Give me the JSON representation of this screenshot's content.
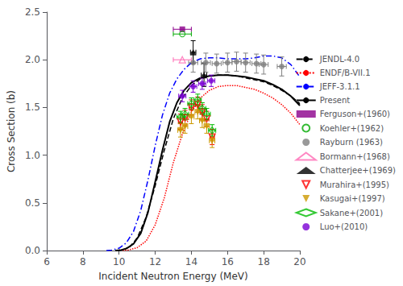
{
  "chart_data": {
    "type": "line",
    "xlabel": "Incident Neutron Energy (MeV)",
    "ylabel": "Cross Section (b)",
    "xlim": [
      6,
      20
    ],
    "ylim": [
      0.0,
      2.5
    ],
    "xticks": [
      6,
      8,
      10,
      12,
      14,
      16,
      18,
      20
    ],
    "yticks": [
      {
        "value": 0.0,
        "label": "0.0"
      },
      0.5,
      {
        "value": 1.0,
        "label": "1.0"
      },
      1.5,
      {
        "value": 2.0,
        "label": "2.0"
      },
      2.5
    ],
    "grid": false,
    "legend": "right",
    "series": [
      {
        "name": "JENDL-4.0",
        "type": "line",
        "color": "#000000",
        "line_style": "dashed",
        "x": [
          9.8,
          10.0,
          10.3,
          10.6,
          11.0,
          11.5,
          12.0,
          12.5,
          13.0,
          13.5,
          14.0,
          14.5,
          15.0,
          15.5,
          16.0,
          16.5,
          17.0,
          17.5,
          18.0,
          18.5,
          19.0,
          19.5,
          20.0
        ],
        "values": [
          0.0,
          0.005,
          0.015,
          0.04,
          0.13,
          0.35,
          0.68,
          1.05,
          1.38,
          1.6,
          1.73,
          1.8,
          1.83,
          1.84,
          1.84,
          1.83,
          1.81,
          1.79,
          1.77,
          1.73,
          1.68,
          1.62,
          1.54
        ]
      },
      {
        "name": "ENDF/B-VII.1",
        "type": "line",
        "color": "#FF0000",
        "line_style": "dotted",
        "x": [
          10.2,
          10.5,
          11.0,
          11.5,
          12.0,
          12.5,
          13.0,
          13.5,
          14.0,
          14.5,
          15.0,
          15.5,
          16.0,
          16.5,
          17.0,
          17.5,
          18.0,
          18.5,
          19.0,
          19.5,
          20.0
        ],
        "values": [
          0.0,
          0.005,
          0.03,
          0.1,
          0.27,
          0.55,
          0.92,
          1.22,
          1.45,
          1.6,
          1.68,
          1.72,
          1.73,
          1.73,
          1.71,
          1.69,
          1.65,
          1.6,
          1.53,
          1.44,
          1.32
        ]
      },
      {
        "name": "JEFF-3.1.1",
        "type": "line",
        "color": "#0000FF",
        "line_style": "dashdot",
        "x": [
          9.3,
          9.6,
          10.0,
          10.4,
          10.8,
          11.2,
          11.6,
          12.0,
          12.4,
          12.8,
          13.2,
          13.6,
          14.0,
          14.5,
          15.0,
          15.5,
          16.0,
          16.5,
          17.0,
          17.5,
          18.0,
          18.5,
          19.0,
          19.5,
          20.0
        ],
        "values": [
          0.0,
          0.005,
          0.025,
          0.08,
          0.2,
          0.42,
          0.74,
          1.1,
          1.42,
          1.65,
          1.8,
          1.9,
          1.97,
          2.01,
          2.02,
          2.02,
          2.01,
          2.01,
          2.01,
          2.02,
          2.04,
          2.04,
          2.02,
          1.95,
          1.82
        ]
      },
      {
        "name": "Present",
        "type": "line",
        "color": "#000000",
        "line_style": "solid",
        "x": [
          9.8,
          10.1,
          10.4,
          10.8,
          11.2,
          11.6,
          12.0,
          12.4,
          12.8,
          13.2,
          13.6,
          14.0,
          14.5,
          15.0,
          15.5,
          16.0,
          16.5,
          17.0,
          17.5,
          18.0,
          18.5,
          19.0,
          19.5,
          20.0
        ],
        "values": [
          0.0,
          0.005,
          0.02,
          0.07,
          0.18,
          0.4,
          0.72,
          1.05,
          1.35,
          1.55,
          1.68,
          1.76,
          1.81,
          1.83,
          1.84,
          1.84,
          1.83,
          1.82,
          1.8,
          1.78,
          1.74,
          1.69,
          1.62,
          1.52
        ]
      },
      {
        "name": "Ferguson+(1960)",
        "type": "scatter",
        "color": "#8B008B",
        "marker": "square",
        "x": [
          13.5
        ],
        "values": [
          2.32
        ],
        "xerr": [
          0.5
        ]
      },
      {
        "name": "Koehler+(1962)",
        "type": "scatter",
        "color": "#00AA00",
        "marker": "open_circle",
        "x": [
          13.5
        ],
        "values": [
          2.27
        ],
        "xerr": [
          0.5
        ]
      },
      {
        "name": "Rayburn (1963)",
        "type": "scatter",
        "color": "#808080",
        "marker": "circle",
        "x": [
          14.1,
          14.8,
          15.4,
          16.0,
          16.5,
          17.0,
          17.6,
          18.0,
          19.0
        ],
        "values": [
          1.97,
          1.97,
          1.96,
          1.97,
          1.98,
          1.97,
          1.96,
          1.95,
          1.93
        ],
        "xerr": [
          0.25,
          0.25,
          0.25,
          0.25,
          0.25,
          0.25,
          0.25,
          0.25,
          0.25
        ],
        "yerr": [
          0.1,
          0.1,
          0.1,
          0.1,
          0.1,
          0.1,
          0.1,
          0.1,
          0.1
        ]
      },
      {
        "name": "Bormann+(1968)",
        "type": "scatter",
        "color": "#FF69B4",
        "marker": "open_triangle",
        "x": [
          13.5
        ],
        "values": [
          2.0
        ],
        "xerr": [
          0.5
        ]
      },
      {
        "name": "Chatterjee+(1969)",
        "type": "scatter",
        "color": "#000000",
        "marker": "triangle",
        "x": [
          14.1,
          14.7
        ],
        "values": [
          2.08,
          1.84
        ],
        "xerr": [
          0.15,
          0.15
        ],
        "yerr": [
          0.12,
          0.12
        ]
      },
      {
        "name": "Murahira+(1995)",
        "type": "scatter",
        "color": "#FF0000",
        "marker": "open_triangle_down",
        "x": [
          13.4,
          13.65,
          14.0,
          14.35,
          14.6,
          14.85,
          15.15
        ],
        "values": [
          1.35,
          1.39,
          1.5,
          1.53,
          1.45,
          1.38,
          1.19
        ],
        "xerr": [
          0.12,
          0.12,
          0.12,
          0.12,
          0.12,
          0.12,
          0.12
        ],
        "yerr": [
          0.08,
          0.08,
          0.08,
          0.08,
          0.08,
          0.08,
          0.08
        ]
      },
      {
        "name": "Kasugai+(1997)",
        "type": "scatter",
        "color": "#CC9900",
        "marker": "triangle_down",
        "x": [
          13.4,
          13.65,
          14.0,
          14.35,
          14.6,
          14.85,
          15.15
        ],
        "values": [
          1.26,
          1.3,
          1.4,
          1.45,
          1.36,
          1.3,
          1.15
        ],
        "xerr": [
          0.15,
          0.15,
          0.15,
          0.15,
          0.15,
          0.15,
          0.15
        ],
        "yerr": [
          0.07,
          0.07,
          0.07,
          0.07,
          0.07,
          0.07,
          0.07
        ]
      },
      {
        "name": "Sakane+(2001)",
        "type": "scatter",
        "color": "#00BB00",
        "marker": "open_diamond",
        "x": [
          13.4,
          13.65,
          14.0,
          14.35,
          14.6,
          14.85,
          15.15
        ],
        "values": [
          1.4,
          1.43,
          1.54,
          1.58,
          1.49,
          1.43,
          1.26
        ],
        "xerr": [
          0.2,
          0.2,
          0.2,
          0.2,
          0.2,
          0.2,
          0.2
        ],
        "yerr": [
          0.06,
          0.06,
          0.06,
          0.06,
          0.06,
          0.06,
          0.06
        ]
      },
      {
        "name": "Luo+(2010)",
        "type": "scatter",
        "color": "#7B00D4",
        "marker": "circle",
        "x": [
          13.5,
          14.1,
          14.6,
          15.1
        ],
        "values": [
          1.62,
          1.72,
          1.75,
          1.78
        ],
        "xerr": [
          0.2,
          0.2,
          0.2,
          0.2
        ],
        "yerr": [
          0.06,
          0.06,
          0.06,
          0.06
        ]
      }
    ]
  }
}
